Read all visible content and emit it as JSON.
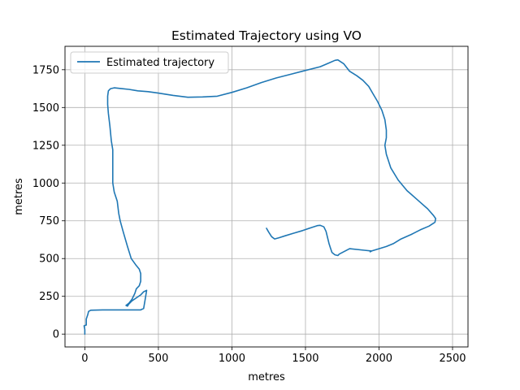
{
  "chart_data": {
    "type": "line",
    "title": "Estimated Trajectory using VO",
    "xlabel": "metres",
    "ylabel": "metres",
    "xlim": [
      -135,
      2605
    ],
    "ylim": [
      -85,
      1905
    ],
    "xticks": [
      0,
      500,
      1000,
      1500,
      2000,
      2500
    ],
    "yticks": [
      0,
      250,
      500,
      750,
      1000,
      1250,
      1500,
      1750
    ],
    "grid": true,
    "legend_position": "top-left",
    "series_color": "#1f77b4",
    "series": [
      {
        "name": "Estimated trajectory",
        "points": [
          [
            0,
            0
          ],
          [
            0,
            30
          ],
          [
            -5,
            55
          ],
          [
            10,
            60
          ],
          [
            10,
            100
          ],
          [
            20,
            130
          ],
          [
            25,
            150
          ],
          [
            40,
            158
          ],
          [
            120,
            160
          ],
          [
            250,
            160
          ],
          [
            380,
            160
          ],
          [
            400,
            170
          ],
          [
            410,
            230
          ],
          [
            420,
            290
          ],
          [
            400,
            280
          ],
          [
            380,
            260
          ],
          [
            350,
            240
          ],
          [
            320,
            220
          ],
          [
            300,
            200
          ],
          [
            290,
            185
          ],
          [
            280,
            190
          ],
          [
            300,
            205
          ],
          [
            320,
            230
          ],
          [
            340,
            270
          ],
          [
            350,
            300
          ],
          [
            370,
            320
          ],
          [
            380,
            350
          ],
          [
            380,
            400
          ],
          [
            370,
            430
          ],
          [
            345,
            460
          ],
          [
            315,
            500
          ],
          [
            290,
            580
          ],
          [
            260,
            680
          ],
          [
            240,
            750
          ],
          [
            230,
            800
          ],
          [
            220,
            880
          ],
          [
            200,
            940
          ],
          [
            190,
            1000
          ],
          [
            190,
            1080
          ],
          [
            190,
            1140
          ],
          [
            190,
            1220
          ],
          [
            180,
            1280
          ],
          [
            175,
            1330
          ],
          [
            170,
            1380
          ],
          [
            165,
            1420
          ],
          [
            160,
            1460
          ],
          [
            155,
            1520
          ],
          [
            155,
            1575
          ],
          [
            160,
            1610
          ],
          [
            175,
            1625
          ],
          [
            200,
            1630
          ],
          [
            250,
            1625
          ],
          [
            300,
            1620
          ],
          [
            360,
            1610
          ],
          [
            430,
            1605
          ],
          [
            500,
            1595
          ],
          [
            600,
            1580
          ],
          [
            700,
            1568
          ],
          [
            800,
            1570
          ],
          [
            900,
            1575
          ],
          [
            1000,
            1600
          ],
          [
            1100,
            1630
          ],
          [
            1200,
            1665
          ],
          [
            1300,
            1695
          ],
          [
            1400,
            1720
          ],
          [
            1500,
            1745
          ],
          [
            1600,
            1770
          ],
          [
            1660,
            1795
          ],
          [
            1700,
            1812
          ],
          [
            1720,
            1815
          ],
          [
            1760,
            1790
          ],
          [
            1800,
            1740
          ],
          [
            1850,
            1710
          ],
          [
            1890,
            1680
          ],
          [
            1930,
            1640
          ],
          [
            1960,
            1590
          ],
          [
            1990,
            1540
          ],
          [
            2020,
            1480
          ],
          [
            2040,
            1420
          ],
          [
            2050,
            1350
          ],
          [
            2050,
            1300
          ],
          [
            2040,
            1250
          ],
          [
            2050,
            1190
          ],
          [
            2080,
            1100
          ],
          [
            2130,
            1020
          ],
          [
            2190,
            950
          ],
          [
            2260,
            890
          ],
          [
            2330,
            830
          ],
          [
            2370,
            785
          ],
          [
            2385,
            765
          ],
          [
            2380,
            740
          ],
          [
            2340,
            715
          ],
          [
            2280,
            690
          ],
          [
            2220,
            660
          ],
          [
            2150,
            630
          ],
          [
            2100,
            600
          ],
          [
            2050,
            580
          ],
          [
            2000,
            565
          ],
          [
            1950,
            550
          ],
          [
            1940,
            545
          ],
          [
            1950,
            550
          ],
          [
            1900,
            555
          ],
          [
            1800,
            565
          ],
          [
            1730,
            530
          ],
          [
            1720,
            520
          ],
          [
            1700,
            525
          ],
          [
            1680,
            540
          ],
          [
            1670,
            570
          ],
          [
            1660,
            600
          ],
          [
            1650,
            640
          ],
          [
            1640,
            680
          ],
          [
            1625,
            710
          ],
          [
            1600,
            720
          ],
          [
            1580,
            718
          ],
          [
            1540,
            705
          ],
          [
            1480,
            685
          ],
          [
            1420,
            668
          ],
          [
            1360,
            650
          ],
          [
            1320,
            638
          ],
          [
            1290,
            630
          ],
          [
            1270,
            645
          ],
          [
            1250,
            675
          ],
          [
            1235,
            700
          ]
        ]
      }
    ]
  }
}
